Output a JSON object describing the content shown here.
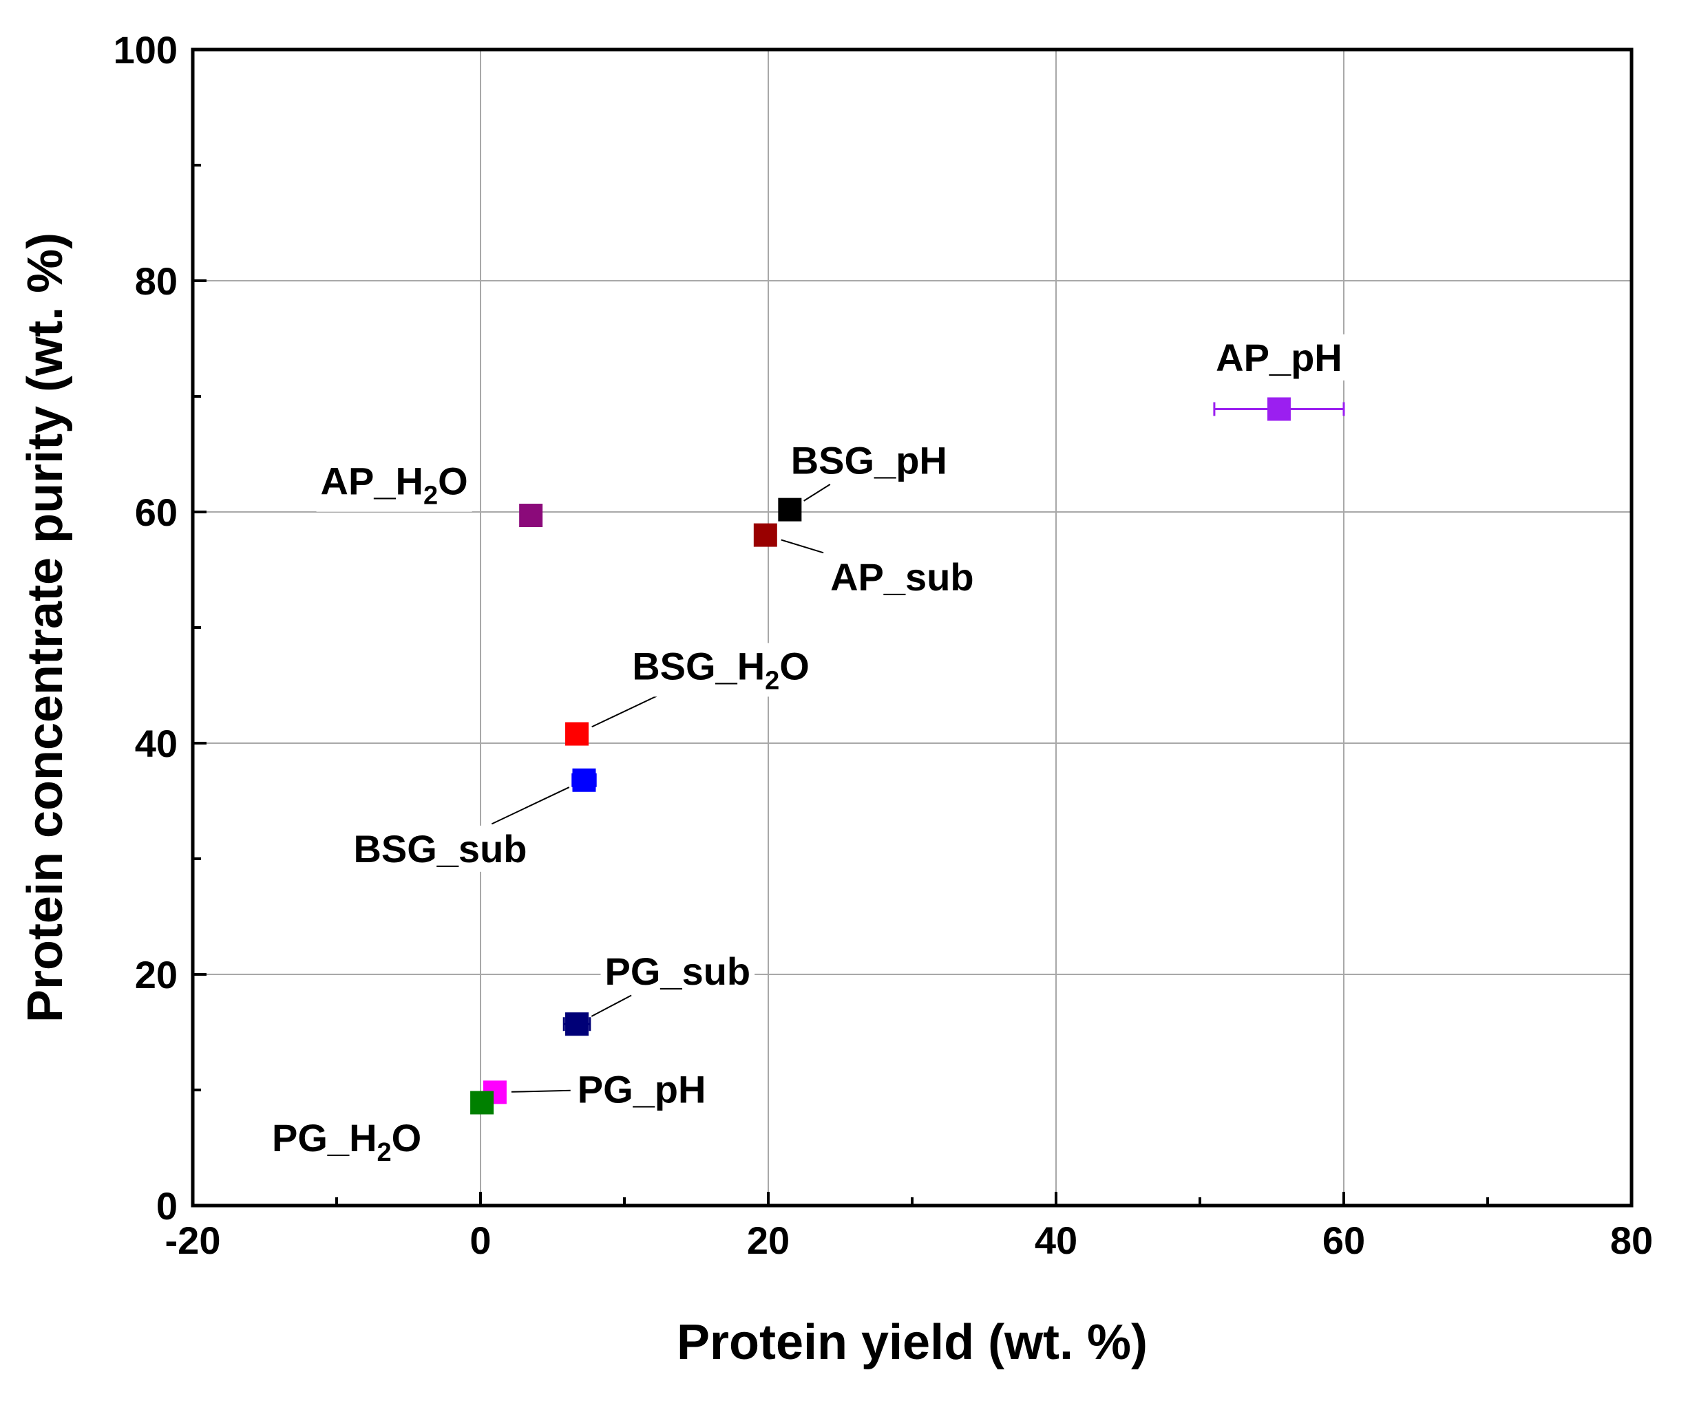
{
  "chart_data": {
    "type": "scatter",
    "xlabel": "Protein yield (wt. %)",
    "ylabel": "Protein concentrate purity (wt. %)",
    "xlim": [
      -20,
      80
    ],
    "ylim": [
      0,
      100
    ],
    "xticks": [
      -20,
      0,
      20,
      40,
      60,
      80
    ],
    "yticks": [
      0,
      20,
      40,
      60,
      80,
      100
    ],
    "xtick_labels": [
      "-20",
      "0",
      "20",
      "40",
      "60",
      "80"
    ],
    "ytick_labels": [
      "0",
      "20",
      "40",
      "60",
      "80",
      "100"
    ],
    "grid": true,
    "series": [
      {
        "name": "AP_pH",
        "label_main": "AP_pH",
        "label_sub": "",
        "label_tail": "",
        "x": 55.5,
        "y": 68.9,
        "xerr": 4.5,
        "color": "#9b1ff0",
        "label_dx": 0,
        "label_dy": 4.5,
        "leader": false
      },
      {
        "name": "BSG_pH",
        "label_main": "BSG_pH",
        "label_sub": "",
        "label_tail": "",
        "x": 21.5,
        "y": 60.2,
        "xerr": 0.7,
        "color": "#000000",
        "label_dx": 5.5,
        "label_dy": 4.3,
        "leader": true
      },
      {
        "name": "AP_H2O",
        "label_main": "AP_H",
        "label_sub": "2",
        "label_tail": "O",
        "x": 3.5,
        "y": 59.7,
        "xerr": 0,
        "color": "#8b0a7a",
        "label_dx": -9.5,
        "label_dy": 3.0,
        "leader": false
      },
      {
        "name": "AP_sub",
        "label_main": "AP_sub",
        "label_sub": "",
        "label_tail": "",
        "x": 19.8,
        "y": 58.0,
        "xerr": 0,
        "color": "#990000",
        "label_dx": 9.5,
        "label_dy": -3.6,
        "leader": true
      },
      {
        "name": "BSG_H2O",
        "label_main": "BSG_H",
        "label_sub": "2",
        "label_tail": "O",
        "x": 6.7,
        "y": 40.8,
        "xerr": 0,
        "color": "#ff0000",
        "label_dx": 10.0,
        "label_dy": 5.9,
        "leader": true
      },
      {
        "name": "BSG_sub",
        "label_main": "BSG_sub",
        "label_sub": "",
        "label_tail": "",
        "x": 7.2,
        "y": 36.8,
        "xerr": 0.8,
        "color": "#0000ff",
        "label_dx": -10.0,
        "label_dy": -5.9,
        "leader": true
      },
      {
        "name": "PG_sub",
        "label_main": "PG_sub",
        "label_sub": "",
        "label_tail": "",
        "x": 6.7,
        "y": 15.7,
        "xerr": 0.9,
        "color": "#000077",
        "label_dx": 7.0,
        "label_dy": 4.6,
        "leader": true
      },
      {
        "name": "PG_pH",
        "label_main": "PG_pH",
        "label_sub": "",
        "label_tail": "",
        "x": 1.0,
        "y": 9.8,
        "xerr": 0,
        "color": "#ff00ff",
        "label_dx": 10.2,
        "label_dy": 0.3,
        "leader": true
      },
      {
        "name": "PG_H2O",
        "label_main": "PG_H",
        "label_sub": "2",
        "label_tail": "O",
        "x": 0.1,
        "y": 8.9,
        "xerr": 0,
        "color": "#008000",
        "label_dx": -9.4,
        "label_dy": -3.0,
        "leader": false
      }
    ]
  }
}
